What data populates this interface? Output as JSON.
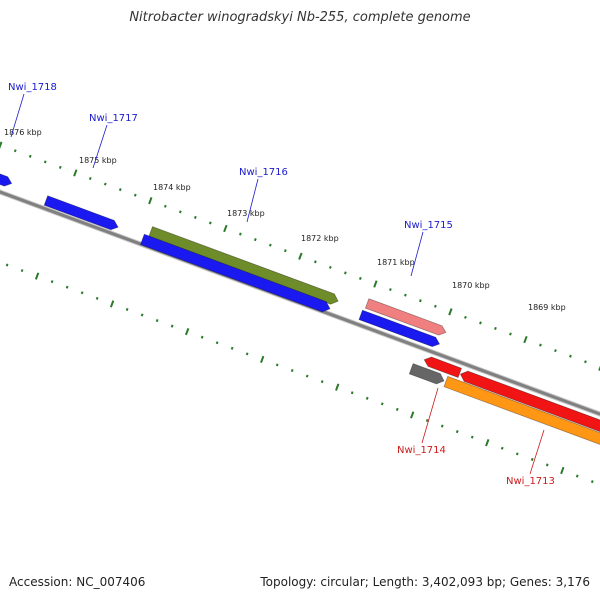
{
  "title": "Nitrobacter winogradskyi Nb-255, complete genome",
  "footer": {
    "accession": "Accession: NC_007406",
    "summary": "Topology: circular; Length: 3,402,093 bp; Genes: 3,176"
  },
  "colors": {
    "backbone": "#808080",
    "tick": "#2a7a2a",
    "label_forward": "#1a1acd",
    "label_reverse": "#cc1a1a",
    "blue": "#1a1af0",
    "olive": "#6e8c2a",
    "pink": "#f08080",
    "red": "#f01414",
    "gray": "#666666",
    "orange": "#ff9614"
  },
  "tick_labels": [
    "1876 kbp",
    "1875 kbp",
    "1874 kbp",
    "1873 kbp",
    "1872 kbp",
    "1871 kbp",
    "1870 kbp",
    "1869 kbp"
  ],
  "gene_labels": [
    {
      "text": "Nwi_1718",
      "strand": "forward"
    },
    {
      "text": "Nwi_1717",
      "strand": "forward"
    },
    {
      "text": "Nwi_1716",
      "strand": "forward"
    },
    {
      "text": "Nwi_1715",
      "strand": "forward"
    },
    {
      "text": "Nwi_1714",
      "strand": "reverse"
    },
    {
      "text": "Nwi_1713",
      "strand": "reverse"
    }
  ]
}
